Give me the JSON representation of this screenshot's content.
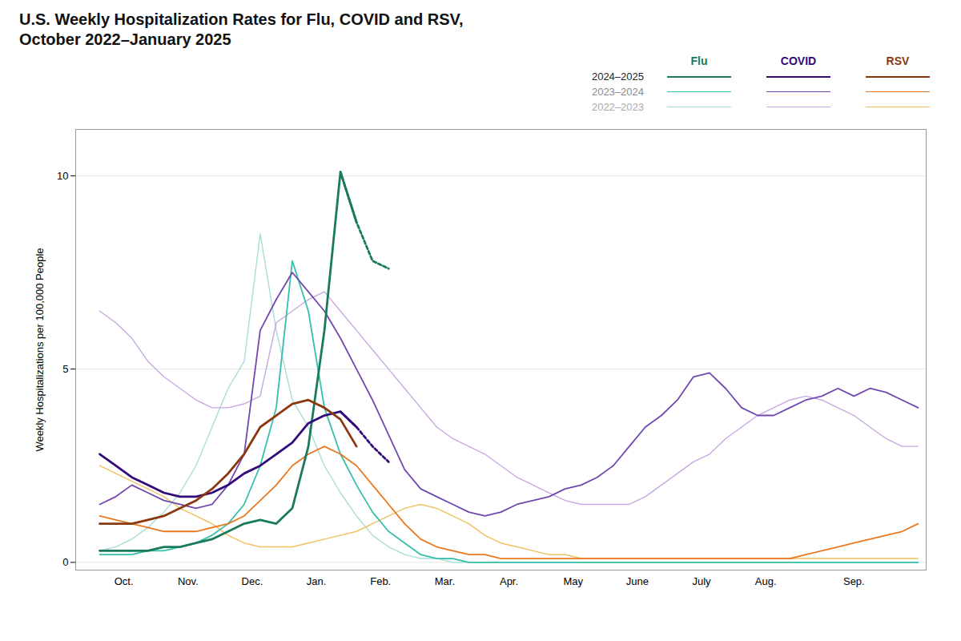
{
  "chart_data": {
    "type": "line",
    "title": "U.S. Weekly Hospitalization Rates for Flu, COVID and RSV,\nOctober 2022–January 2025",
    "ylabel": "Weekly Hospitalizations per 100,000 People",
    "xlim": [
      -1.5,
      51.5
    ],
    "xticks": [
      {
        "value": 1.5,
        "label": "Oct."
      },
      {
        "value": 5.5,
        "label": "Nov."
      },
      {
        "value": 9.5,
        "label": "Dec."
      },
      {
        "value": 13.5,
        "label": "Jan."
      },
      {
        "value": 17.5,
        "label": "Feb."
      },
      {
        "value": 21.5,
        "label": "Mar."
      },
      {
        "value": 25.5,
        "label": "Apr."
      },
      {
        "value": 29.5,
        "label": "May"
      },
      {
        "value": 33.5,
        "label": "June"
      },
      {
        "value": 37.5,
        "label": "July"
      },
      {
        "value": 41.5,
        "label": "Aug."
      },
      {
        "value": 47.0,
        "label": "Sep."
      }
    ],
    "ylim": [
      -0.2,
      11.2
    ],
    "yticks": [
      0,
      5,
      10
    ],
    "grid": true,
    "legend": "upper right",
    "series": [
      {
        "name": "Flu",
        "season": "2022–2023",
        "color": "#a8ddd6",
        "line_style": "solid",
        "x": [
          0,
          1,
          2,
          3,
          4,
          5,
          6,
          7,
          8,
          9,
          10,
          11,
          12,
          13,
          14,
          15,
          16,
          17,
          18,
          19,
          20,
          21,
          22,
          23,
          24,
          25,
          26,
          27,
          28,
          29,
          30,
          31,
          32,
          33,
          34,
          35,
          36,
          37,
          38,
          39,
          40,
          41,
          42,
          43,
          44,
          45,
          46,
          47,
          48,
          49,
          50,
          51
        ],
        "values": [
          0.3,
          0.4,
          0.6,
          0.9,
          1.3,
          1.8,
          2.5,
          3.5,
          4.5,
          5.2,
          8.5,
          6.0,
          4.2,
          3.5,
          2.5,
          1.8,
          1.2,
          0.7,
          0.4,
          0.2,
          0.1,
          0.1,
          0.0,
          0.0,
          0.0,
          0.0,
          0.0,
          0.0,
          0.0,
          0.0,
          0.0,
          0.0,
          0.0,
          0.0,
          0.0,
          0.0,
          0.0,
          0.0,
          0.0,
          0.0,
          0.0,
          0.0,
          0.0,
          0.0,
          0.0,
          0.0,
          0.0,
          0.0,
          0.0,
          0.0,
          0.0,
          0.0
        ]
      },
      {
        "name": "COVID",
        "season": "2022–2023",
        "color": "#c8a8e0",
        "line_style": "solid",
        "x": [
          0,
          1,
          2,
          3,
          4,
          5,
          6,
          7,
          8,
          9,
          10,
          11,
          12,
          13,
          14,
          15,
          16,
          17,
          18,
          19,
          20,
          21,
          22,
          23,
          24,
          25,
          26,
          27,
          28,
          29,
          30,
          31,
          32,
          33,
          34,
          35,
          36,
          37,
          38,
          39,
          40,
          41,
          42,
          43,
          44,
          45,
          46,
          47,
          48,
          49,
          50,
          51
        ],
        "values": [
          6.5,
          6.2,
          5.8,
          5.2,
          4.8,
          4.5,
          4.2,
          4.0,
          4.0,
          4.1,
          4.3,
          6.2,
          6.5,
          6.8,
          7.0,
          6.5,
          6.0,
          5.5,
          5.0,
          4.5,
          4.0,
          3.5,
          3.2,
          3.0,
          2.8,
          2.5,
          2.2,
          2.0,
          1.8,
          1.6,
          1.5,
          1.5,
          1.5,
          1.5,
          1.7,
          2.0,
          2.3,
          2.6,
          2.8,
          3.2,
          3.5,
          3.8,
          4.0,
          4.2,
          4.3,
          4.2,
          4.0,
          3.8,
          3.5,
          3.2,
          3.0,
          3.0
        ]
      },
      {
        "name": "RSV",
        "season": "2022–2023",
        "color": "#f0c060",
        "line_style": "solid",
        "x": [
          0,
          1,
          2,
          3,
          4,
          5,
          6,
          7,
          8,
          9,
          10,
          11,
          12,
          13,
          14,
          15,
          16,
          17,
          18,
          19,
          20,
          21,
          22,
          23,
          24,
          25,
          26,
          27,
          28,
          29,
          30,
          31,
          32,
          33,
          34,
          35,
          36,
          37,
          38,
          39,
          40,
          41,
          42,
          43,
          44,
          45,
          46,
          47,
          48,
          49,
          50,
          51
        ],
        "values": [
          2.5,
          2.3,
          2.1,
          1.9,
          1.7,
          1.4,
          1.2,
          1.0,
          0.7,
          0.5,
          0.4,
          0.4,
          0.4,
          0.5,
          0.6,
          0.7,
          0.8,
          1.0,
          1.2,
          1.4,
          1.5,
          1.4,
          1.2,
          1.0,
          0.7,
          0.5,
          0.4,
          0.3,
          0.2,
          0.2,
          0.1,
          0.1,
          0.1,
          0.1,
          0.1,
          0.1,
          0.1,
          0.1,
          0.1,
          0.1,
          0.1,
          0.1,
          0.1,
          0.1,
          0.1,
          0.1,
          0.1,
          0.1,
          0.1,
          0.1,
          0.1,
          0.1
        ]
      },
      {
        "name": "Flu",
        "season": "2023–2024",
        "color": "#36bfaa",
        "line_style": "solid",
        "x": [
          0,
          1,
          2,
          3,
          4,
          5,
          6,
          7,
          8,
          9,
          10,
          11,
          12,
          13,
          14,
          15,
          16,
          17,
          18,
          19,
          20,
          21,
          22,
          23,
          24,
          25,
          26,
          27,
          28,
          29,
          30,
          31,
          32,
          33,
          34,
          35,
          36,
          37,
          38,
          39,
          40,
          41,
          42,
          43,
          44,
          45,
          46,
          47,
          48,
          49,
          50,
          51
        ],
        "values": [
          0.2,
          0.2,
          0.2,
          0.3,
          0.3,
          0.4,
          0.5,
          0.7,
          1.0,
          1.5,
          2.5,
          4.0,
          7.8,
          6.5,
          4.0,
          2.8,
          2.0,
          1.3,
          0.8,
          0.5,
          0.2,
          0.1,
          0.1,
          0.0,
          0.0,
          0.0,
          0.0,
          0.0,
          0.0,
          0.0,
          0.0,
          0.0,
          0.0,
          0.0,
          0.0,
          0.0,
          0.0,
          0.0,
          0.0,
          0.0,
          0.0,
          0.0,
          0.0,
          0.0,
          0.0,
          0.0,
          0.0,
          0.0,
          0.0,
          0.0,
          0.0,
          0.0
        ]
      },
      {
        "name": "COVID",
        "season": "2023–2024",
        "color": "#7048b0",
        "line_style": "solid",
        "x": [
          0,
          1,
          2,
          3,
          4,
          5,
          6,
          7,
          8,
          9,
          10,
          11,
          12,
          13,
          14,
          15,
          16,
          17,
          18,
          19,
          20,
          21,
          22,
          23,
          24,
          25,
          26,
          27,
          28,
          29,
          30,
          31,
          32,
          33,
          34,
          35,
          36,
          37,
          38,
          39,
          40,
          41,
          42,
          43,
          44,
          45,
          46,
          47,
          48,
          49,
          50,
          51
        ],
        "values": [
          1.5,
          1.7,
          2.0,
          1.8,
          1.6,
          1.5,
          1.4,
          1.5,
          2.0,
          2.8,
          6.0,
          6.8,
          7.5,
          7.0,
          6.5,
          5.8,
          5.0,
          4.2,
          3.3,
          2.4,
          1.9,
          1.7,
          1.5,
          1.3,
          1.2,
          1.3,
          1.5,
          1.6,
          1.7,
          1.9,
          2.0,
          2.2,
          2.5,
          3.0,
          3.5,
          3.8,
          4.2,
          4.8,
          4.9,
          4.5,
          4.0,
          3.8,
          3.8,
          4.0,
          4.2,
          4.3,
          4.5,
          4.3,
          4.5,
          4.4,
          4.2,
          4.0
        ]
      },
      {
        "name": "RSV",
        "season": "2023–2024",
        "color": "#e87820",
        "line_style": "solid",
        "x": [
          0,
          1,
          2,
          3,
          4,
          5,
          6,
          7,
          8,
          9,
          10,
          11,
          12,
          13,
          14,
          15,
          16,
          17,
          18,
          19,
          20,
          21,
          22,
          23,
          24,
          25,
          26,
          27,
          28,
          29,
          30,
          31,
          32,
          33,
          34,
          35,
          36,
          37,
          38,
          39,
          40,
          41,
          42,
          43,
          44,
          45,
          46,
          47,
          48,
          49,
          50,
          51
        ],
        "values": [
          1.2,
          1.1,
          1.0,
          0.9,
          0.8,
          0.8,
          0.8,
          0.9,
          1.0,
          1.2,
          1.6,
          2.0,
          2.5,
          2.8,
          3.0,
          2.8,
          2.5,
          2.0,
          1.5,
          1.0,
          0.6,
          0.4,
          0.3,
          0.2,
          0.2,
          0.1,
          0.1,
          0.1,
          0.1,
          0.1,
          0.1,
          0.1,
          0.1,
          0.1,
          0.1,
          0.1,
          0.1,
          0.1,
          0.1,
          0.1,
          0.1,
          0.1,
          0.1,
          0.1,
          0.2,
          0.3,
          0.4,
          0.5,
          0.6,
          0.7,
          0.8,
          1.0
        ]
      },
      {
        "name": "Flu",
        "season": "2024–2025",
        "color": "#1a7a5e",
        "line_style": "solid",
        "x": [
          0,
          1,
          2,
          3,
          4,
          5,
          6,
          7,
          8,
          9,
          10,
          11,
          12,
          13,
          14,
          15,
          16
        ],
        "values": [
          0.3,
          0.3,
          0.3,
          0.3,
          0.4,
          0.4,
          0.5,
          0.6,
          0.8,
          1.0,
          1.1,
          1.0,
          1.4,
          3.0,
          6.0,
          10.1,
          8.8
        ]
      },
      {
        "name": "COVID",
        "season": "2024–2025",
        "color": "#330a7a",
        "line_style": "solid",
        "x": [
          0,
          1,
          2,
          3,
          4,
          5,
          6,
          7,
          8,
          9,
          10,
          11,
          12,
          13,
          14,
          15,
          16
        ],
        "values": [
          2.8,
          2.5,
          2.2,
          2.0,
          1.8,
          1.7,
          1.7,
          1.8,
          2.0,
          2.3,
          2.5,
          2.8,
          3.1,
          3.6,
          3.8,
          3.9,
          3.5
        ]
      },
      {
        "name": "RSV",
        "season": "2024–2025",
        "color": "#8b3810",
        "line_style": "solid",
        "x": [
          0,
          1,
          2,
          3,
          4,
          5,
          6,
          7,
          8,
          9,
          10,
          11,
          12,
          13,
          14,
          15,
          16
        ],
        "values": [
          1.0,
          1.0,
          1.0,
          1.1,
          1.2,
          1.4,
          1.6,
          1.9,
          2.3,
          2.8,
          3.5,
          3.8,
          4.1,
          4.2,
          4.0,
          3.7,
          3.0
        ]
      },
      {
        "name": "Flu",
        "season": "2024–2025",
        "color": "#1a7a5e",
        "line_style": "dashed",
        "x": [
          15,
          16,
          17,
          18
        ],
        "values": [
          10.1,
          8.8,
          7.8,
          7.6
        ]
      },
      {
        "name": "COVID",
        "season": "2024–2025",
        "color": "#330a7a",
        "line_style": "dashed",
        "x": [
          15,
          16,
          17,
          18
        ],
        "values": [
          3.9,
          3.5,
          3.0,
          2.6
        ]
      }
    ]
  }
}
